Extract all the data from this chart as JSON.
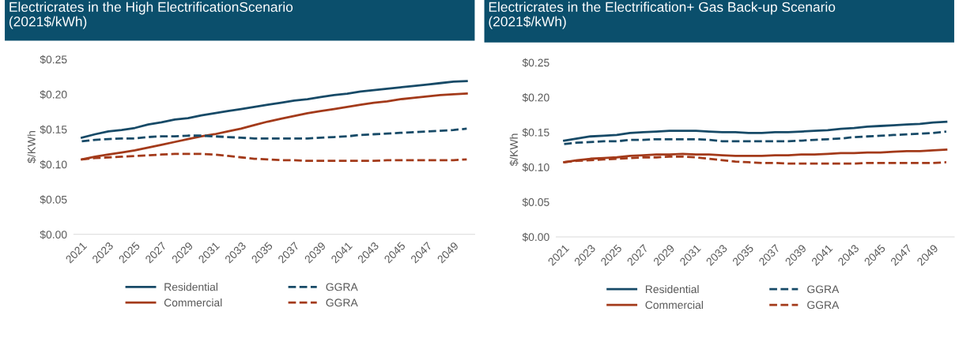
{
  "chart_data": [
    {
      "type": "line",
      "title": "Electricrates in the High ElectrificationScenario\n(2021$/kWh)",
      "ylabel": "$/KWh",
      "categories": [
        "2021",
        null,
        "2023",
        null,
        "2025",
        null,
        "2027",
        null,
        "2029",
        null,
        "2031",
        null,
        "2033",
        null,
        "2035",
        null,
        "2037",
        null,
        "2039",
        null,
        "2041",
        null,
        "2043",
        null,
        "2045",
        null,
        "2047",
        null,
        "2049",
        null
      ],
      "ylim": [
        0,
        0.25
      ],
      "yticks": [
        {
          "value": 0,
          "label": "$0.00"
        },
        {
          "value": 0.05,
          "label": "$0.05"
        },
        {
          "value": 0.1,
          "label": "$0.10"
        },
        {
          "value": 0.15,
          "label": "$0.15"
        },
        {
          "value": 0.2,
          "label": "$0.20"
        },
        {
          "value": 0.25,
          "label": "$0.25"
        }
      ],
      "grid": false,
      "legend": "bottom",
      "marker": "none",
      "series": [
        {
          "name": "Residential",
          "color": "#174a67",
          "line_style": "solid",
          "values": [
            0.138,
            0.143,
            0.147,
            0.149,
            0.152,
            0.157,
            0.16,
            0.164,
            0.166,
            0.17,
            0.173,
            0.176,
            0.179,
            0.182,
            0.185,
            0.188,
            0.191,
            0.193,
            0.196,
            0.199,
            0.201,
            0.204,
            0.206,
            0.208,
            0.21,
            0.212,
            0.214,
            0.216,
            0.218,
            0.219
          ]
        },
        {
          "name": "Commercial",
          "color": "#a33a1a",
          "line_style": "solid",
          "values": [
            0.107,
            0.111,
            0.114,
            0.117,
            0.12,
            0.124,
            0.128,
            0.132,
            0.136,
            0.14,
            0.143,
            0.147,
            0.151,
            0.156,
            0.161,
            0.165,
            0.169,
            0.173,
            0.176,
            0.179,
            0.182,
            0.185,
            0.188,
            0.19,
            0.193,
            0.195,
            0.197,
            0.199,
            0.2,
            0.201
          ]
        },
        {
          "name": "GGRA",
          "color": "#174a67",
          "line_style": "dashed",
          "values": [
            0.133,
            0.135,
            0.136,
            0.137,
            0.137,
            0.139,
            0.14,
            0.14,
            0.141,
            0.141,
            0.14,
            0.139,
            0.138,
            0.137,
            0.137,
            0.137,
            0.137,
            0.137,
            0.138,
            0.139,
            0.14,
            0.142,
            0.143,
            0.144,
            0.145,
            0.146,
            0.147,
            0.148,
            0.149,
            0.151
          ]
        },
        {
          "name": "GGRA",
          "color": "#a33a1a",
          "line_style": "dashed",
          "values": [
            0.107,
            0.109,
            0.11,
            0.111,
            0.112,
            0.113,
            0.114,
            0.115,
            0.115,
            0.115,
            0.114,
            0.112,
            0.11,
            0.108,
            0.107,
            0.106,
            0.106,
            0.105,
            0.105,
            0.105,
            0.105,
            0.105,
            0.105,
            0.106,
            0.106,
            0.106,
            0.106,
            0.106,
            0.106,
            0.107
          ]
        }
      ]
    },
    {
      "type": "line",
      "title": "Electricrates in the Electrification+ Gas Back-up Scenario\n(2021$/kWh)",
      "ylabel": "$/KWh",
      "categories": [
        "2021",
        null,
        "2023",
        null,
        "2025",
        null,
        "2027",
        null,
        "2029",
        null,
        "2031",
        null,
        "2033",
        null,
        "2035",
        null,
        "2037",
        null,
        "2039",
        null,
        "2041",
        null,
        "2043",
        null,
        "2045",
        null,
        "2047",
        null,
        "2049",
        null
      ],
      "ylim": [
        0,
        0.25
      ],
      "yticks": [
        {
          "value": 0,
          "label": "$0.00"
        },
        {
          "value": 0.05,
          "label": "$0.05"
        },
        {
          "value": 0.1,
          "label": "$0.10"
        },
        {
          "value": 0.15,
          "label": "$0.15"
        },
        {
          "value": 0.2,
          "label": "$0.20"
        },
        {
          "value": 0.25,
          "label": "$0.25"
        }
      ],
      "grid": false,
      "legend": "bottom",
      "marker": "none",
      "series": [
        {
          "name": "Residential",
          "color": "#174a67",
          "line_style": "solid",
          "values": [
            0.138,
            0.141,
            0.144,
            0.145,
            0.146,
            0.149,
            0.15,
            0.151,
            0.152,
            0.152,
            0.152,
            0.151,
            0.15,
            0.15,
            0.149,
            0.149,
            0.15,
            0.15,
            0.151,
            0.152,
            0.153,
            0.155,
            0.156,
            0.158,
            0.159,
            0.16,
            0.161,
            0.162,
            0.164,
            0.165
          ]
        },
        {
          "name": "Commercial",
          "color": "#a33a1a",
          "line_style": "solid",
          "values": [
            0.107,
            0.11,
            0.112,
            0.113,
            0.114,
            0.116,
            0.117,
            0.118,
            0.118,
            0.119,
            0.118,
            0.118,
            0.117,
            0.116,
            0.116,
            0.116,
            0.117,
            0.117,
            0.118,
            0.118,
            0.119,
            0.12,
            0.12,
            0.121,
            0.121,
            0.122,
            0.123,
            0.123,
            0.124,
            0.125
          ]
        },
        {
          "name": "GGRA",
          "color": "#174a67",
          "line_style": "dashed",
          "values": [
            0.133,
            0.135,
            0.136,
            0.137,
            0.137,
            0.139,
            0.139,
            0.14,
            0.14,
            0.14,
            0.14,
            0.139,
            0.137,
            0.137,
            0.137,
            0.137,
            0.137,
            0.137,
            0.138,
            0.139,
            0.14,
            0.141,
            0.143,
            0.144,
            0.145,
            0.146,
            0.147,
            0.148,
            0.149,
            0.151
          ]
        },
        {
          "name": "GGRA",
          "color": "#a33a1a",
          "line_style": "dashed",
          "values": [
            0.107,
            0.109,
            0.11,
            0.111,
            0.112,
            0.113,
            0.114,
            0.114,
            0.115,
            0.115,
            0.114,
            0.112,
            0.11,
            0.108,
            0.107,
            0.106,
            0.106,
            0.105,
            0.105,
            0.105,
            0.105,
            0.105,
            0.105,
            0.106,
            0.106,
            0.106,
            0.106,
            0.106,
            0.106,
            0.107
          ]
        }
      ]
    }
  ]
}
